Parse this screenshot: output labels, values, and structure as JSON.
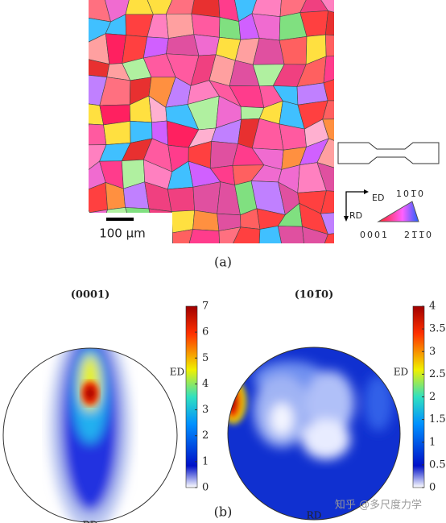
{
  "panel_a": {
    "label": "(a)",
    "scale_bar_label": "100 μm",
    "axes": {
      "ed": "ED",
      "rd": "RD"
    },
    "ipf_labels": {
      "top": "101̅0",
      "left": "0001",
      "right": "21̅1̅0"
    }
  },
  "panel_b": {
    "label": "(b)",
    "pole_figures": [
      {
        "title": "(0001)",
        "ed": "ED",
        "rd": "RD",
        "colorbar": {
          "lim": [
            0,
            7
          ],
          "ticks": [
            0,
            1,
            2,
            3,
            4,
            5,
            6,
            7
          ]
        }
      },
      {
        "title": "(101̅0)",
        "ed": "ED",
        "rd": "RD",
        "colorbar": {
          "lim": [
            0,
            4
          ],
          "ticks": [
            0,
            0.5,
            1,
            1.5,
            2,
            2.5,
            3,
            3.5,
            4
          ]
        }
      }
    ]
  },
  "watermark": "知乎 @多尺度力学"
}
